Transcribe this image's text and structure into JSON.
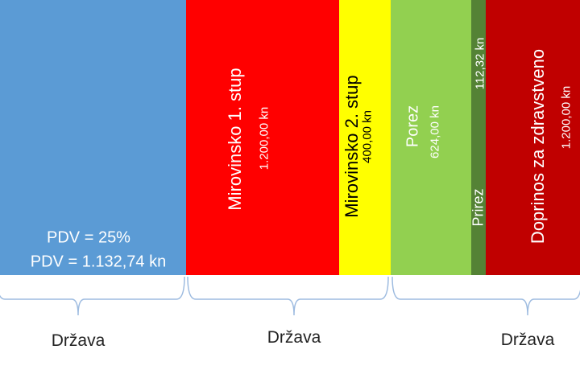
{
  "chart_data": {
    "type": "bar",
    "orientation": "stacked-horizontal",
    "segments": [
      {
        "name": "PDV",
        "label_lines": [
          "PDV = 25%",
          "PDV = 1.132,74 kn"
        ],
        "value": 1132.74,
        "color": "#5b9bd5"
      },
      {
        "name": "Mirovinsko 1. stup",
        "value_label": "1.200,00 kn",
        "value": 1200.0,
        "color": "#ff0000"
      },
      {
        "name": "Mirovinsko 2. stup",
        "value_label": "400,00 kn",
        "value": 400.0,
        "color": "#ffff00"
      },
      {
        "name": "Porez",
        "value_label": "624,00 kn",
        "value": 624.0,
        "color": "#92d050"
      },
      {
        "name": "Prirez",
        "value_label": "112,32 kn",
        "value": 112.32,
        "color": "#548235"
      },
      {
        "name": "Doprinos za zdravstveno",
        "value_label": "1.200,00 kn",
        "value": 1200.0,
        "color": "#c00000"
      }
    ],
    "groups": [
      {
        "label": "Država"
      },
      {
        "label": "Država"
      },
      {
        "label": "Država"
      }
    ]
  }
}
